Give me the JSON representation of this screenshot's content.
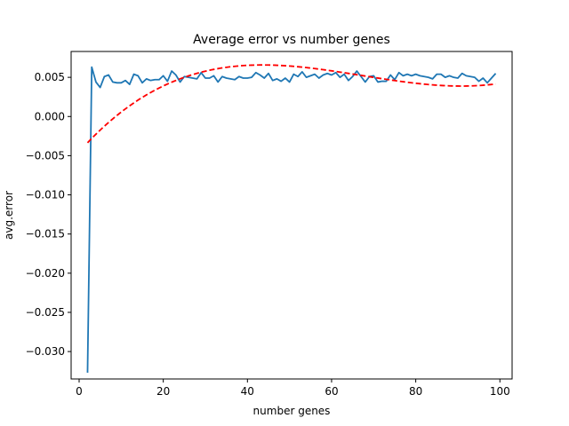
{
  "chart_data": {
    "type": "line",
    "title": "Average error vs number genes",
    "xlabel": "number genes",
    "ylabel": "avg.error",
    "xlim": [
      -1.9,
      102.9
    ],
    "ylim": [
      -0.0335,
      0.0083
    ],
    "x_ticks": [
      0,
      20,
      40,
      60,
      80,
      100
    ],
    "x_tick_labels": [
      "0",
      "20",
      "40",
      "60",
      "80",
      "100"
    ],
    "y_ticks": [
      0.005,
      0.0,
      -0.005,
      -0.01,
      -0.015,
      -0.02,
      -0.025,
      -0.03
    ],
    "y_tick_labels": [
      "0.005",
      "0.000",
      "−0.005",
      "−0.010",
      "−0.015",
      "−0.020",
      "−0.025",
      "−0.030"
    ],
    "grid": false,
    "series": [
      {
        "color": "#1f77b4",
        "style": "solid",
        "x": [
          2,
          3,
          4,
          5,
          6,
          7,
          8,
          9,
          10,
          11,
          12,
          13,
          14,
          15,
          16,
          17,
          18,
          19,
          20,
          21,
          22,
          23,
          24,
          25,
          26,
          27,
          28,
          29,
          30,
          31,
          32,
          33,
          34,
          35,
          36,
          37,
          38,
          39,
          40,
          41,
          42,
          43,
          44,
          45,
          46,
          47,
          48,
          49,
          50,
          51,
          52,
          53,
          54,
          55,
          56,
          57,
          58,
          59,
          60,
          61,
          62,
          63,
          64,
          65,
          66,
          67,
          68,
          69,
          70,
          71,
          72,
          73,
          74,
          75,
          76,
          77,
          78,
          79,
          80,
          81,
          82,
          83,
          84,
          85,
          86,
          87,
          88,
          89,
          90,
          91,
          92,
          93,
          94,
          95,
          96,
          97,
          98,
          99
        ],
        "y": [
          -0.0327,
          0.0063,
          0.0044,
          0.0037,
          0.0051,
          0.0053,
          0.0044,
          0.0043,
          0.0043,
          0.0046,
          0.0041,
          0.0054,
          0.0052,
          0.0043,
          0.0048,
          0.0046,
          0.0047,
          0.0047,
          0.0052,
          0.0045,
          0.0058,
          0.0053,
          0.0044,
          0.0051,
          0.005,
          0.0049,
          0.0048,
          0.0056,
          0.0049,
          0.0049,
          0.0052,
          0.0044,
          0.0051,
          0.0049,
          0.0048,
          0.0047,
          0.0051,
          0.0049,
          0.0049,
          0.005,
          0.0056,
          0.0053,
          0.0049,
          0.0055,
          0.0046,
          0.0048,
          0.0045,
          0.0049,
          0.0044,
          0.0054,
          0.0051,
          0.0057,
          0.005,
          0.0052,
          0.0054,
          0.0049,
          0.0053,
          0.0055,
          0.0053,
          0.0056,
          0.005,
          0.0054,
          0.0046,
          0.0051,
          0.0058,
          0.0051,
          0.0044,
          0.0051,
          0.0052,
          0.0044,
          0.0045,
          0.0045,
          0.0053,
          0.0047,
          0.0056,
          0.0052,
          0.0054,
          0.0052,
          0.0054,
          0.0052,
          0.0051,
          0.005,
          0.0048,
          0.0054,
          0.0054,
          0.005,
          0.0052,
          0.005,
          0.0049,
          0.0055,
          0.0052,
          0.0051,
          0.005,
          0.0045,
          0.0049,
          0.0043,
          0.0049,
          0.0055
        ]
      },
      {
        "color": "#ff0000",
        "style": "dashed",
        "fit": "polynomial-degree-3",
        "x_range": [
          2,
          99
        ],
        "anchor_points": [
          [
            2,
            -0.0036
          ],
          [
            26.5,
            0.0061
          ],
          [
            60,
            0.0043
          ],
          [
            85,
            0.0057
          ],
          [
            99,
            0.0034
          ]
        ]
      }
    ]
  }
}
